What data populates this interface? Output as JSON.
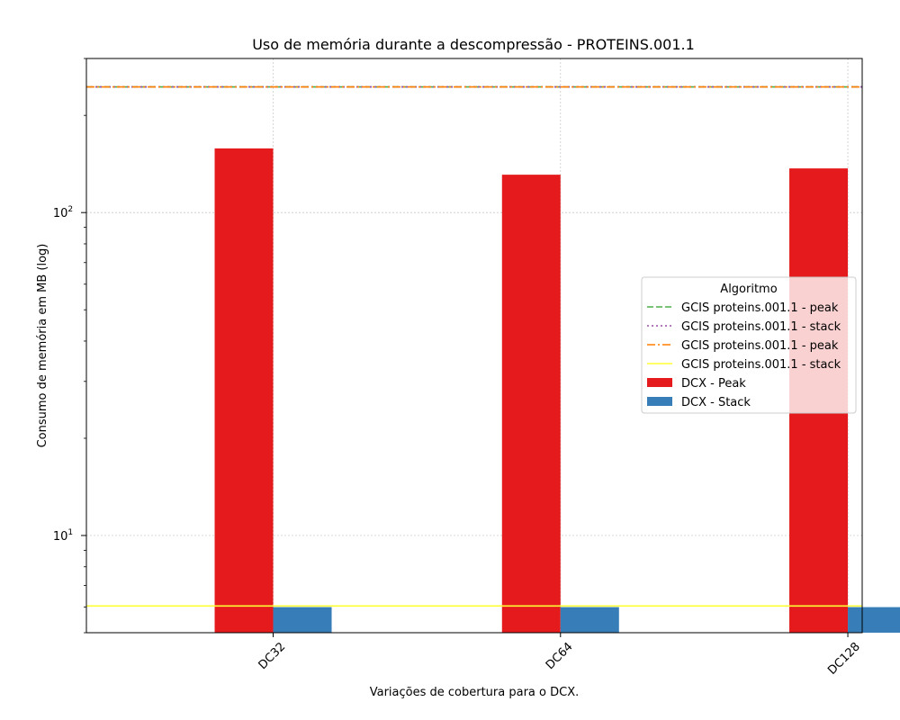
{
  "chart_data": {
    "type": "bar",
    "title": "Uso de memória durante a descompressão -  PROTEINS.001.1",
    "xlabel": "Variações de cobertura para o DCX.",
    "ylabel": "Consumo de memória em MB (log)",
    "yscale": "log",
    "ylim": [
      5,
      300
    ],
    "grid": true,
    "categories": [
      "DC32",
      "DC64",
      "DC128"
    ],
    "y_ticks": [
      {
        "value": 10,
        "label": "10",
        "exp": "1"
      },
      {
        "value": 100,
        "label": "10",
        "exp": "2"
      }
    ],
    "series": [
      {
        "name": "DCX - Peak",
        "color": "#e41a1c",
        "values": [
          158,
          131,
          137
        ]
      },
      {
        "name": "DCX - Stack",
        "color": "#377eb8",
        "values": [
          6.0,
          6.0,
          6.0
        ]
      }
    ],
    "hlines": [
      {
        "name": "GCIS proteins.001.1 - peak",
        "value": 245,
        "color": "#4daf4a",
        "style": "dashed"
      },
      {
        "name": "GCIS proteins.001.1 - stack",
        "value": 245,
        "color": "#984ea3",
        "style": "dotted"
      },
      {
        "name": "GCIS proteins.001.1 - peak",
        "value": 245,
        "color": "#ff7f00",
        "style": "dashdot"
      },
      {
        "name": "GCIS proteins.001.1 - stack",
        "value": 6.05,
        "color": "#ffff33",
        "style": "solid"
      }
    ],
    "legend": {
      "title": "Algoritmo",
      "placement": "center-right"
    }
  }
}
